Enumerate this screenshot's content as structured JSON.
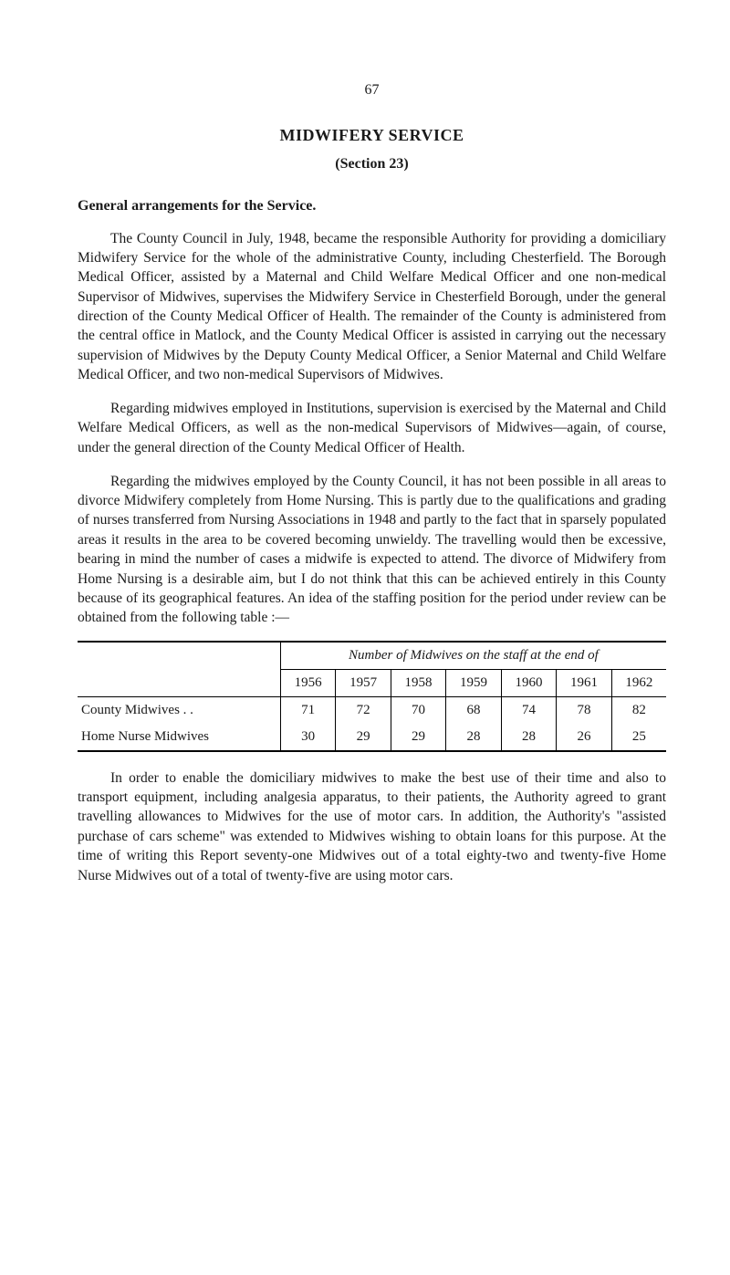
{
  "page_number": "67",
  "title": "MIDWIFERY SERVICE",
  "subtitle": "(Section 23)",
  "section_heading": "General arrangements for the Service.",
  "paragraphs": {
    "p1": "The County Council in July, 1948, became the responsible Authority for providing a domiciliary Midwifery Service for the whole of the administrative County, including Chesterfield. The Borough Medical Officer, assisted by a Maternal and Child Welfare Medical Officer and one non-medical Supervisor of Midwives, supervises the Midwifery Service in Chesterfield Borough, under the general direction of the County Medical Officer of Health. The remainder of the County is administered from the central office in Matlock, and the County Medical Officer is assisted in carrying out the necessary supervision of Midwives by the Deputy County Medical Officer, a Senior Maternal and Child Welfare Medical Officer, and two non-medical Supervisors of Midwives.",
    "p2": "Regarding midwives employed in Institutions, supervision is exercised by the Maternal and Child Welfare Medical Officers, as well as the non-medical Supervisors of Midwives—again, of course, under the general direction of the County Medical Officer of Health.",
    "p3": "Regarding the midwives employed by the County Council, it has not been possible in all areas to divorce Midwifery completely from Home Nursing. This is partly due to the qualifications and grading of nurses transferred from Nursing Associations in 1948 and partly to the fact that in sparsely populated areas it results in the area to be covered becoming unwieldy. The travelling would then be excessive, bearing in mind the number of cases a midwife is expected to attend. The divorce of Midwifery from Home Nursing is a desirable aim, but I do not think that this can be achieved entirely in this County because of its geographical features. An idea of the staffing position for the period under review can be obtained from the following table :—",
    "p4": "In order to enable the domiciliary midwives to make the best use of their time and also to transport equipment, including analgesia apparatus, to their patients, the Authority agreed to grant travelling allowances to Midwives for the use of motor cars. In addition, the Authority's \"assisted purchase of cars scheme\" was extended to Midwives wishing to obtain loans for this purpose. At the time of writing this Report seventy-one Midwives out of a total eighty-two and twenty-five Home Nurse Midwives out of a total of twenty-five are using motor cars."
  },
  "table": {
    "type": "table",
    "caption": "Number of Midwives on the staff at the end of",
    "columns": [
      "1956",
      "1957",
      "1958",
      "1959",
      "1960",
      "1961",
      "1962"
    ],
    "rows": [
      {
        "label": "County Midwives    . .",
        "values": [
          "71",
          "72",
          "70",
          "68",
          "74",
          "78",
          "82"
        ]
      },
      {
        "label": "Home Nurse Midwives",
        "values": [
          "30",
          "29",
          "29",
          "28",
          "28",
          "26",
          "25"
        ]
      }
    ],
    "rule_color": "#000000",
    "font_size": 15,
    "caption_fontsize": 15,
    "label_col_width_pct": 30,
    "year_col_width_pct": 10
  },
  "colors": {
    "text": "#1a1a1a",
    "background": "#ffffff",
    "rule": "#000000"
  },
  "typography": {
    "body_font_family": "Georgia, Times New Roman, serif",
    "body_font_size_pt": 12,
    "title_font_size_pt": 14,
    "line_height": 1.38
  }
}
